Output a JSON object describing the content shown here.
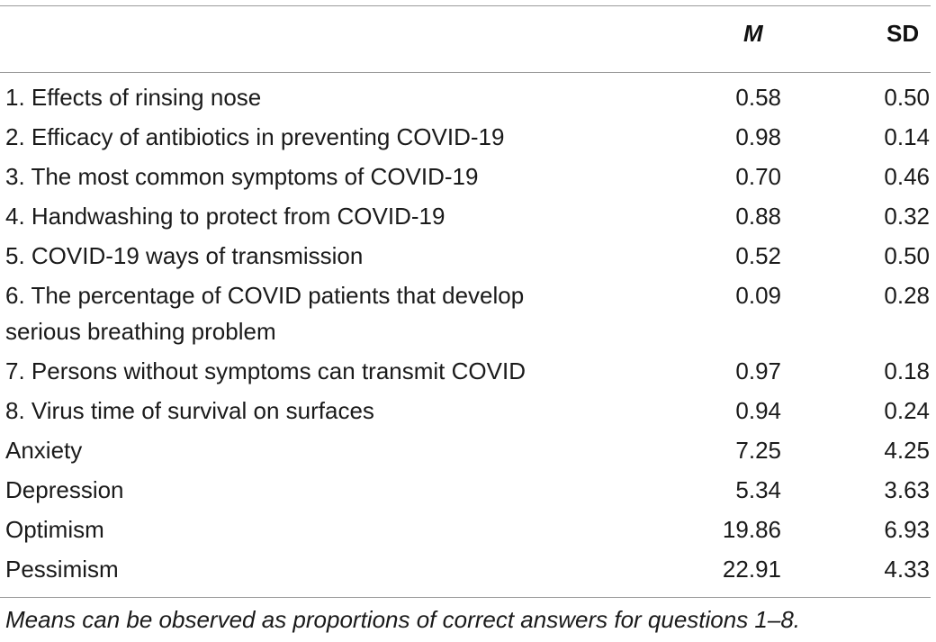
{
  "table": {
    "headers": {
      "mean": "M",
      "sd": "SD"
    },
    "rows": [
      {
        "label": "1. Effects of rinsing nose",
        "m": "0.58",
        "sd": "0.50"
      },
      {
        "label": "2. Efficacy of antibiotics in preventing COVID-19",
        "m": "0.98",
        "sd": "0.14"
      },
      {
        "label": "3. The most common symptoms of COVID-19",
        "m": "0.70",
        "sd": "0.46"
      },
      {
        "label": "4. Handwashing to protect from COVID-19",
        "m": "0.88",
        "sd": "0.32"
      },
      {
        "label": "5. COVID-19 ways of transmission",
        "m": "0.52",
        "sd": "0.50"
      },
      {
        "label": "6. The percentage of COVID patients that develop serious breathing problem",
        "m": "0.09",
        "sd": "0.28"
      },
      {
        "label": "7. Persons without symptoms can transmit COVID",
        "m": "0.97",
        "sd": "0.18"
      },
      {
        "label": "8. Virus time of survival on surfaces",
        "m": "0.94",
        "sd": "0.24"
      },
      {
        "label": "Anxiety",
        "m": "7.25",
        "sd": "4.25"
      },
      {
        "label": "Depression",
        "m": "5.34",
        "sd": "3.63"
      },
      {
        "label": "Optimism",
        "m": "19.86",
        "sd": "6.93"
      },
      {
        "label": "Pessimism",
        "m": "22.91",
        "sd": "4.33"
      }
    ],
    "footnote": "Means can be observed as proportions of correct answers for questions 1–8."
  }
}
